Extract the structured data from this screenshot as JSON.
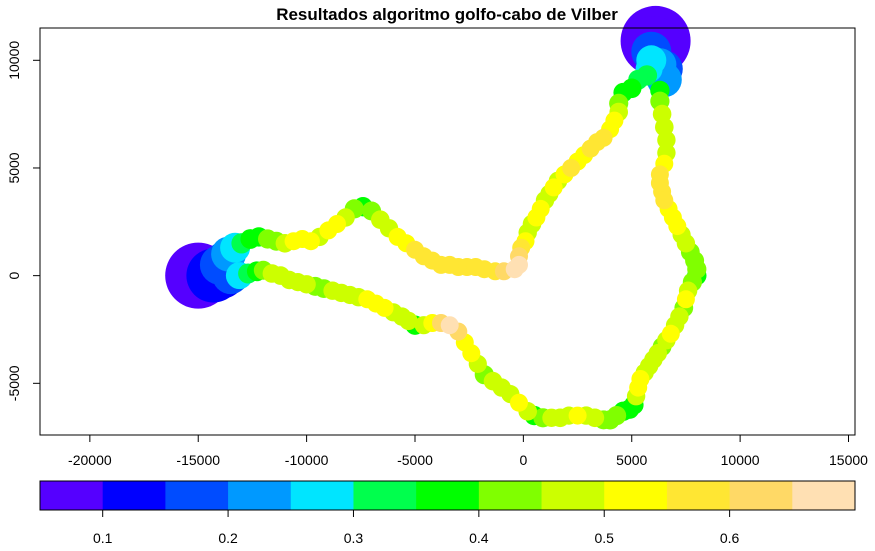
{
  "chart_data": {
    "type": "scatter",
    "title": "Resultados algoritmo golfo-cabo de Vilber",
    "xlabel": "",
    "ylabel": "",
    "xlim": [
      -22300,
      15300
    ],
    "ylim": [
      -7400,
      11500
    ],
    "x_ticks": [
      -20000,
      -15000,
      -10000,
      -5000,
      0,
      5000,
      10000,
      15000
    ],
    "x_tick_labels": [
      "-20000",
      "-15000",
      "-10000",
      "-5000",
      "0",
      "5000",
      "10000",
      "15000"
    ],
    "y_ticks": [
      -5000,
      0,
      5000,
      10000
    ],
    "y_tick_labels": [
      "-5000",
      "0",
      "5000",
      "10000"
    ],
    "grid": false,
    "legend": "colorbar-bottom",
    "colorbar": {
      "range": [
        0.05,
        0.7
      ],
      "colors": [
        "#5500ff",
        "#0000ff",
        "#004cff",
        "#0099ff",
        "#00e5ff",
        "#00ff4d",
        "#00ff00",
        "#80ff00",
        "#ccff00",
        "#ffff00",
        "#ffe633",
        "#ffd966",
        "#ffe0b3"
      ],
      "ticks": [
        0.1,
        0.2,
        0.3,
        0.4,
        0.5,
        0.6
      ],
      "tick_labels": [
        "0.1",
        "0.2",
        "0.3",
        "0.4",
        "0.5",
        "0.6"
      ]
    },
    "series": [
      {
        "points": [
          [
            -15000,
            0,
            0.07
          ],
          [
            -14300,
            0,
            0.1
          ],
          [
            -13900,
            0,
            0.12
          ],
          [
            -13500,
            0,
            0.18
          ],
          [
            -13100,
            0,
            0.28
          ],
          [
            -12700,
            100,
            0.33
          ],
          [
            -12300,
            200,
            0.35
          ],
          [
            -12000,
            250,
            0.42
          ],
          [
            -11600,
            100,
            0.45
          ],
          [
            -11200,
            0,
            0.45
          ],
          [
            -10800,
            -200,
            0.47
          ],
          [
            -10400,
            -300,
            0.48
          ],
          [
            -10000,
            -400,
            0.47
          ],
          [
            -9600,
            -500,
            0.42
          ],
          [
            -9200,
            -600,
            0.44
          ],
          [
            -8800,
            -700,
            0.47
          ],
          [
            -8400,
            -800,
            0.46
          ],
          [
            -8000,
            -900,
            0.48
          ],
          [
            -7600,
            -1000,
            0.47
          ],
          [
            -7200,
            -1100,
            0.5
          ],
          [
            -6800,
            -1300,
            0.5
          ],
          [
            -6400,
            -1500,
            0.5
          ],
          [
            -6000,
            -1700,
            0.49
          ],
          [
            -5600,
            -1900,
            0.47
          ],
          [
            -5300,
            -2100,
            0.47
          ],
          [
            -5000,
            -2300,
            0.38
          ],
          [
            -4600,
            -2300,
            0.49
          ],
          [
            -4200,
            -2200,
            0.5
          ],
          [
            -3800,
            -2200,
            0.6
          ],
          [
            -3400,
            -2300,
            0.65
          ],
          [
            -3000,
            -2600,
            0.6
          ],
          [
            -2700,
            -3100,
            0.5
          ],
          [
            -2400,
            -3600,
            0.5
          ],
          [
            -2100,
            -4100,
            0.49
          ],
          [
            -1800,
            -4600,
            0.4
          ],
          [
            -1400,
            -4900,
            0.45
          ],
          [
            -1000,
            -5200,
            0.47
          ],
          [
            -600,
            -5500,
            0.48
          ],
          [
            -200,
            -5900,
            0.5
          ],
          [
            200,
            -6300,
            0.45
          ],
          [
            500,
            -6500,
            0.38
          ],
          [
            900,
            -6600,
            0.4
          ],
          [
            1300,
            -6600,
            0.47
          ],
          [
            1700,
            -6600,
            0.45
          ],
          [
            2100,
            -6500,
            0.48
          ],
          [
            2500,
            -6500,
            0.5
          ],
          [
            2900,
            -6500,
            0.47
          ],
          [
            3300,
            -6600,
            0.45
          ],
          [
            3700,
            -6700,
            0.42
          ],
          [
            4000,
            -6700,
            0.4
          ],
          [
            4300,
            -6500,
            0.4
          ],
          [
            4600,
            -6300,
            0.38
          ],
          [
            4900,
            -6200,
            0.38
          ],
          [
            5100,
            -6000,
            0.38
          ],
          [
            5200,
            -5600,
            0.47
          ],
          [
            5300,
            -5200,
            0.5
          ],
          [
            5400,
            -4800,
            0.5
          ],
          [
            5600,
            -4500,
            0.48
          ],
          [
            5800,
            -4200,
            0.47
          ],
          [
            6000,
            -3900,
            0.46
          ],
          [
            6200,
            -3600,
            0.47
          ],
          [
            6400,
            -3300,
            0.44
          ],
          [
            6600,
            -3000,
            0.46
          ],
          [
            6800,
            -2700,
            0.5
          ],
          [
            7000,
            -2300,
            0.47
          ],
          [
            7200,
            -1900,
            0.47
          ],
          [
            7400,
            -1500,
            0.44
          ],
          [
            7500,
            -1100,
            0.5
          ],
          [
            7600,
            -700,
            0.47
          ],
          [
            7800,
            -300,
            0.4
          ],
          [
            8000,
            0,
            0.38
          ],
          [
            8000,
            300,
            0.4
          ],
          [
            7900,
            700,
            0.42
          ],
          [
            7700,
            1100,
            0.44
          ],
          [
            7500,
            1500,
            0.47
          ],
          [
            7300,
            1900,
            0.49
          ],
          [
            7100,
            2300,
            0.5
          ],
          [
            6900,
            2700,
            0.5
          ],
          [
            6700,
            3100,
            0.52
          ],
          [
            6500,
            3500,
            0.55
          ],
          [
            6400,
            3900,
            0.55
          ],
          [
            6300,
            4300,
            0.55
          ],
          [
            6300,
            4700,
            0.55
          ],
          [
            6500,
            5200,
            0.5
          ],
          [
            6600,
            5700,
            0.47
          ],
          [
            6600,
            6300,
            0.46
          ],
          [
            6500,
            6900,
            0.45
          ],
          [
            6400,
            7500,
            0.45
          ],
          [
            6300,
            8100,
            0.4
          ],
          [
            6300,
            8600,
            0.38
          ],
          [
            6500,
            9100,
            0.2
          ],
          [
            6500,
            9600,
            0.18
          ],
          [
            6300,
            9800,
            0.22
          ],
          [
            6100,
            10900,
            0.06
          ],
          [
            6000,
            10700,
            0.09
          ],
          [
            5900,
            10400,
            0.15
          ],
          [
            5900,
            10000,
            0.25
          ],
          [
            5800,
            9600,
            0.28
          ],
          [
            5700,
            9300,
            0.3
          ],
          [
            5300,
            9100,
            0.33
          ],
          [
            5000,
            8700,
            0.36
          ],
          [
            4600,
            8500,
            0.38
          ],
          [
            4400,
            8000,
            0.4
          ],
          [
            4400,
            7600,
            0.45
          ],
          [
            4200,
            7200,
            0.5
          ],
          [
            4000,
            6800,
            0.5
          ],
          [
            3700,
            6400,
            0.55
          ],
          [
            3400,
            6200,
            0.55
          ],
          [
            3100,
            5900,
            0.55
          ],
          [
            2800,
            5600,
            0.5
          ],
          [
            2500,
            5300,
            0.5
          ],
          [
            2200,
            5000,
            0.55
          ],
          [
            1900,
            4700,
            0.5
          ],
          [
            1600,
            4400,
            0.45
          ],
          [
            1400,
            4100,
            0.5
          ],
          [
            1200,
            3800,
            0.48
          ],
          [
            1000,
            3500,
            0.47
          ],
          [
            800,
            3100,
            0.5
          ],
          [
            600,
            2700,
            0.5
          ],
          [
            400,
            2400,
            0.45
          ],
          [
            200,
            2000,
            0.46
          ],
          [
            100,
            1600,
            0.5
          ],
          [
            -100,
            1300,
            0.55
          ],
          [
            -200,
            900,
            0.6
          ],
          [
            -200,
            500,
            0.65
          ],
          [
            -400,
            300,
            0.7
          ],
          [
            -900,
            200,
            0.6
          ],
          [
            -1300,
            200,
            0.55
          ],
          [
            -1800,
            300,
            0.55
          ],
          [
            -2200,
            400,
            0.57
          ],
          [
            -2600,
            400,
            0.55
          ],
          [
            -3000,
            400,
            0.55
          ],
          [
            -3400,
            500,
            0.56
          ],
          [
            -3800,
            500,
            0.57
          ],
          [
            -4200,
            700,
            0.55
          ],
          [
            -4600,
            900,
            0.55
          ],
          [
            -5000,
            1200,
            0.55
          ],
          [
            -5400,
            1500,
            0.5
          ],
          [
            -5800,
            1800,
            0.5
          ],
          [
            -6200,
            2200,
            0.47
          ],
          [
            -6600,
            2600,
            0.45
          ],
          [
            -7000,
            3000,
            0.42
          ],
          [
            -7400,
            3200,
            0.38
          ],
          [
            -7800,
            3100,
            0.4
          ],
          [
            -8200,
            2700,
            0.46
          ],
          [
            -8600,
            2400,
            0.5
          ],
          [
            -9000,
            2100,
            0.5
          ],
          [
            -9400,
            1800,
            0.47
          ],
          [
            -9800,
            1600,
            0.5
          ],
          [
            -10200,
            1700,
            0.5
          ],
          [
            -10600,
            1600,
            0.5
          ],
          [
            -11000,
            1500,
            0.45
          ],
          [
            -11400,
            1600,
            0.42
          ],
          [
            -11800,
            1700,
            0.4
          ],
          [
            -12200,
            1800,
            0.38
          ],
          [
            -12600,
            1700,
            0.35
          ],
          [
            -13000,
            1500,
            0.3
          ],
          [
            -13300,
            1300,
            0.25
          ],
          [
            -13600,
            1000,
            0.2
          ],
          [
            -13800,
            700,
            0.17
          ],
          [
            -14000,
            500,
            0.15
          ]
        ]
      }
    ]
  }
}
